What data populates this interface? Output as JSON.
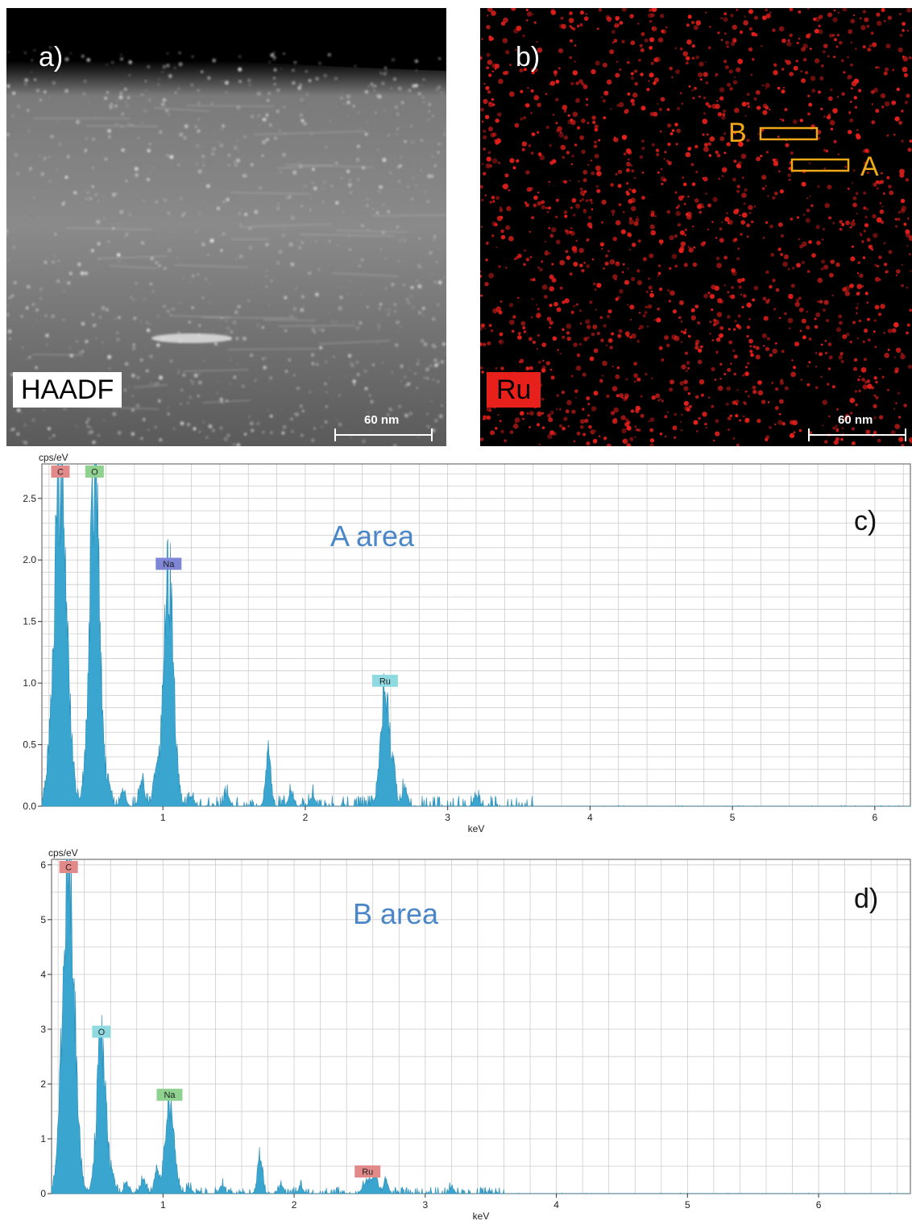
{
  "panel_a": {
    "letter": "a)",
    "label": "HAADF",
    "scalebar": "60 nm"
  },
  "panel_b": {
    "letter": "b)",
    "label": "Ru",
    "scalebar": "60 nm",
    "region_a": "A",
    "region_b": "B",
    "region_color": "#f0a818",
    "dot_color": "#e8201c"
  },
  "chart_data": [
    {
      "type": "area",
      "panel": "c)",
      "title": "A area",
      "ylabel": "cps/eV",
      "xlabel": "keV",
      "xlim": [
        0.15,
        6.25
      ],
      "ylim": [
        0,
        2.78
      ],
      "xticks": [
        1,
        2,
        3,
        4,
        5,
        6
      ],
      "yticks": [
        0.0,
        0.5,
        1.0,
        1.5,
        2.0,
        2.5
      ],
      "ytick_labels": [
        "0.0",
        "0.5",
        "1.0",
        "1.5",
        "2.0",
        "2.5"
      ],
      "fill_color": "#3aa5cf",
      "peaks": [
        {
          "element": "C",
          "x": 0.28,
          "y": 2.78,
          "tag_color": "#e28a8a"
        },
        {
          "element": "O",
          "x": 0.52,
          "y": 2.78,
          "tag_color": "#8fd28f"
        },
        {
          "element": "Na",
          "x": 1.04,
          "y": 1.9,
          "tag_color": "#7f86d6"
        },
        {
          "element": "Ru",
          "x": 2.56,
          "y": 0.95,
          "tag_color": "#8fd9e0"
        }
      ]
    },
    {
      "type": "area",
      "panel": "d)",
      "title": "B area",
      "ylabel": "cps/eV",
      "xlabel": "keV",
      "xlim": [
        0.15,
        6.7
      ],
      "ylim": [
        0,
        6.1
      ],
      "xticks": [
        1,
        2,
        3,
        4,
        5,
        6
      ],
      "yticks": [
        0,
        1,
        2,
        3,
        4,
        5,
        6
      ],
      "ytick_labels": [
        "0",
        "1",
        "2",
        "3",
        "4",
        "5",
        "6"
      ],
      "fill_color": "#3aa5cf",
      "peaks": [
        {
          "element": "C",
          "x": 0.28,
          "y": 6.1,
          "tag_color": "#e28a8a"
        },
        {
          "element": "O",
          "x": 0.53,
          "y": 2.8,
          "tag_color": "#8fd9e0"
        },
        {
          "element": "Na",
          "x": 1.05,
          "y": 1.65,
          "tag_color": "#8fd28f"
        },
        {
          "element": "Ru",
          "x": 2.56,
          "y": 0.25,
          "tag_color": "#e28a8a"
        }
      ]
    }
  ]
}
